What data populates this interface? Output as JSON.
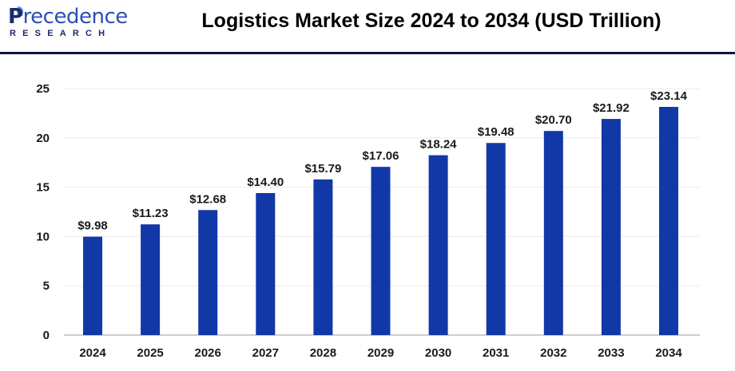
{
  "logo": {
    "line1_first": "P",
    "line1_rest": "recedence",
    "line2": "RESEARCH"
  },
  "header": {
    "title": "Logistics Market Size 2024 to 2034 (USD Trillion)"
  },
  "colors": {
    "bar": "#1238a8",
    "rule": "#0f1445",
    "grid": "#ececec"
  },
  "chart_data": {
    "type": "bar",
    "title": "Logistics Market Size 2024 to 2034 (USD Trillion)",
    "xlabel": "",
    "ylabel": "",
    "ylim": [
      0,
      25
    ],
    "yticks": [
      0,
      5,
      10,
      15,
      20,
      25
    ],
    "grid": true,
    "categories": [
      "2024",
      "2025",
      "2026",
      "2027",
      "2028",
      "2029",
      "2030",
      "2031",
      "2032",
      "2033",
      "2034"
    ],
    "values": [
      9.98,
      11.23,
      12.68,
      14.4,
      15.79,
      17.06,
      18.24,
      19.48,
      20.7,
      21.92,
      23.14
    ],
    "data_labels": [
      "$9.98",
      "$11.23",
      "$12.68",
      "$14.40",
      "$15.79",
      "$17.06",
      "$18.24",
      "$19.48",
      "$20.70",
      "$21.92",
      "$23.14"
    ]
  }
}
